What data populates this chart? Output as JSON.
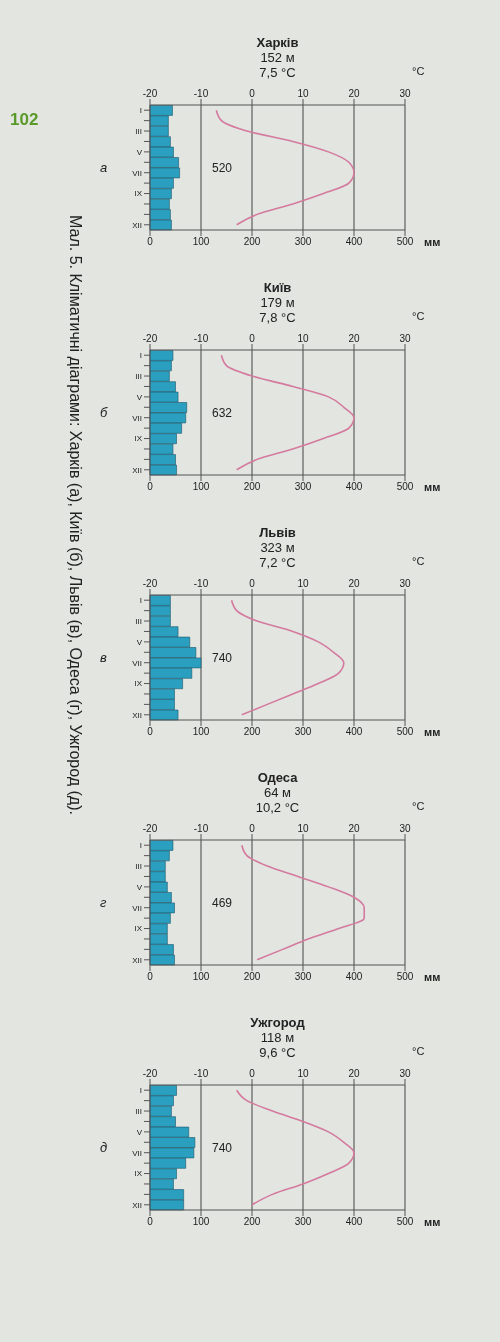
{
  "chart_data": [
    {
      "type": "bar",
      "orientation": "horizontal",
      "title": "Харків",
      "subtitle": "152 м",
      "x2label": "°C",
      "xlabel": "мм",
      "categories": [
        "I",
        null,
        "III",
        null,
        "V",
        null,
        "VII",
        null,
        "IX",
        null,
        null,
        "XII"
      ],
      "x2lim": [
        -20,
        30
      ],
      "x2ticks": [
        -20,
        -10,
        0,
        10,
        20,
        30
      ],
      "xlim": [
        0,
        500
      ],
      "xticks": [
        0,
        100,
        200,
        300,
        400,
        500
      ],
      "grid": "x",
      "marker": "none",
      "series": [
        {
          "color": "#2a9fc0",
          "values": [
            44,
            36,
            36,
            40,
            46,
            56,
            58,
            46,
            42,
            38,
            40,
            42
          ]
        },
        {
          "type": "line",
          "axis": "x2",
          "color": "#d47a9e",
          "values": [
            -7,
            -6,
            -1,
            8,
            15,
            19,
            20,
            19,
            14,
            8,
            1,
            -3
          ]
        }
      ],
      "annotations": [
        "7,5 °C",
        "520",
        "а",
        "102",
        "Мал. 5. Кліматичні діаграми: Харків (а), Київ (б), Львів (в), Одеса (г), Ужгород (д)."
      ]
    },
    {
      "type": "bar",
      "orientation": "horizontal",
      "title": "Київ",
      "subtitle": "179 м",
      "x2label": "°C",
      "xlabel": "мм",
      "categories": [
        "I",
        null,
        "III",
        null,
        "V",
        null,
        "VII",
        null,
        "IX",
        null,
        null,
        "XII"
      ],
      "x2lim": [
        -20,
        30
      ],
      "x2ticks": [
        -20,
        -10,
        0,
        10,
        20,
        30
      ],
      "xlim": [
        0,
        500
      ],
      "xticks": [
        0,
        100,
        200,
        300,
        400,
        500
      ],
      "grid": "x",
      "marker": "none",
      "series": [
        {
          "color": "#2a9fc0",
          "values": [
            45,
            42,
            38,
            50,
            55,
            72,
            70,
            62,
            52,
            45,
            50,
            52
          ]
        },
        {
          "type": "line",
          "axis": "x2",
          "color": "#d47a9e",
          "values": [
            -6,
            -5,
            0,
            8,
            15,
            18,
            20,
            19,
            14,
            8,
            1,
            -3
          ]
        }
      ],
      "annotations": [
        "7,8 °C",
        "632",
        "б"
      ]
    },
    {
      "type": "bar",
      "orientation": "horizontal",
      "title": "Львів",
      "subtitle": "323 м",
      "x2label": "°C",
      "xlabel": "мм",
      "categories": [
        "I",
        null,
        "III",
        null,
        "V",
        null,
        "VII",
        null,
        "IX",
        null,
        null,
        "XII"
      ],
      "x2lim": [
        -20,
        30
      ],
      "x2ticks": [
        -20,
        -10,
        0,
        10,
        20,
        30
      ],
      "xlim": [
        0,
        500
      ],
      "xticks": [
        0,
        100,
        200,
        300,
        400,
        500
      ],
      "grid": "x",
      "marker": "none",
      "series": [
        {
          "color": "#2a9fc0",
          "values": [
            40,
            40,
            40,
            55,
            78,
            90,
            100,
            82,
            64,
            48,
            48,
            55
          ]
        },
        {
          "type": "line",
          "axis": "x2",
          "color": "#d47a9e",
          "values": [
            -4,
            -3,
            1,
            8,
            13,
            16,
            18,
            17,
            13,
            8,
            3,
            -2
          ]
        }
      ],
      "annotations": [
        "7,2 °C",
        "740",
        "в"
      ]
    },
    {
      "type": "bar",
      "orientation": "horizontal",
      "title": "Одеса",
      "subtitle": "64 м",
      "x2label": "°C",
      "xlabel": "мм",
      "categories": [
        "I",
        null,
        "III",
        null,
        "V",
        null,
        "VII",
        null,
        "IX",
        null,
        null,
        "XII"
      ],
      "x2lim": [
        -20,
        30
      ],
      "x2ticks": [
        -20,
        -10,
        0,
        10,
        20,
        30
      ],
      "xlim": [
        0,
        500
      ],
      "xticks": [
        0,
        100,
        200,
        300,
        400,
        500
      ],
      "grid": "x",
      "marker": "none",
      "series": [
        {
          "color": "#2a9fc0",
          "values": [
            45,
            38,
            30,
            30,
            34,
            42,
            48,
            40,
            34,
            34,
            46,
            48
          ]
        },
        {
          "type": "line",
          "axis": "x2",
          "color": "#d47a9e",
          "values": [
            -2,
            -1,
            3,
            9,
            15,
            20,
            22,
            22,
            17,
            11,
            6,
            1
          ]
        }
      ],
      "annotations": [
        "10,2 °C",
        "469",
        "г"
      ]
    },
    {
      "type": "bar",
      "orientation": "horizontal",
      "title": "Ужгород",
      "subtitle": "118 м",
      "x2label": "°C",
      "xlabel": "мм",
      "categories": [
        "I",
        null,
        "III",
        null,
        "V",
        null,
        "VII",
        null,
        "IX",
        null,
        null,
        "XII"
      ],
      "x2lim": [
        -20,
        30
      ],
      "x2ticks": [
        -20,
        -10,
        0,
        10,
        20,
        30
      ],
      "xlim": [
        0,
        500
      ],
      "xticks": [
        0,
        100,
        200,
        300,
        400,
        500
      ],
      "grid": "x",
      "marker": "none",
      "series": [
        {
          "color": "#2a9fc0",
          "values": [
            52,
            46,
            42,
            50,
            76,
            88,
            86,
            70,
            52,
            46,
            66,
            66
          ]
        },
        {
          "type": "line",
          "axis": "x2",
          "color": "#d47a9e",
          "values": [
            -3,
            -1,
            4,
            10,
            15,
            18,
            20,
            19,
            15,
            10,
            4,
            0
          ]
        }
      ],
      "annotations": [
        "9,6 °C",
        "740",
        "д"
      ]
    }
  ]
}
